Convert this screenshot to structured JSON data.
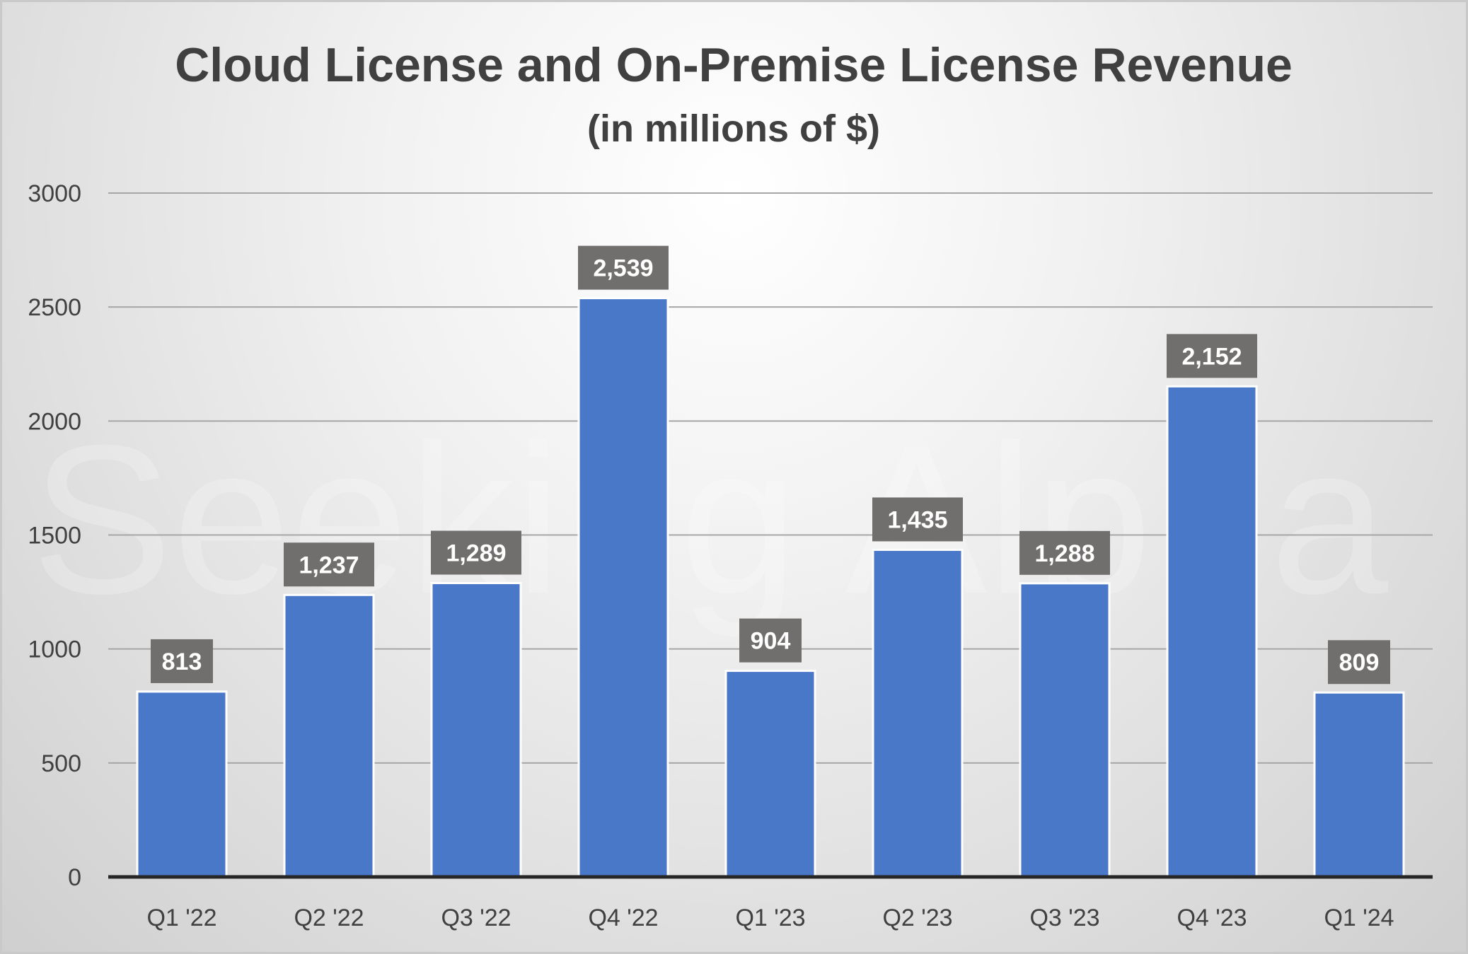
{
  "chart_data": {
    "type": "bar",
    "title": "Cloud License and On-Premise License Revenue",
    "subtitle": "(in millions of $)",
    "xlabel": "",
    "ylabel": "",
    "categories": [
      "Q1 '22",
      "Q2 '22",
      "Q3 '22",
      "Q4 '22",
      "Q1 '23",
      "Q2 '23",
      "Q3 '23",
      "Q4 '23",
      "Q1 '24"
    ],
    "values": [
      813,
      1237,
      1289,
      2539,
      904,
      1435,
      1288,
      2152,
      809
    ],
    "data_labels": [
      "813",
      "1,237",
      "1,289",
      "2,539",
      "904",
      "1,435",
      "1,288",
      "2,152",
      "809"
    ],
    "ylim": [
      0,
      3000
    ],
    "yticks": [
      0,
      500,
      1000,
      1500,
      2000,
      2500,
      3000
    ],
    "grid": true,
    "legend": "none",
    "watermark": "Seeking Alpha",
    "colors": {
      "bar": "#4a78c9",
      "bar_edge": "#ffffff",
      "label_box": "#716e6e",
      "grid": "#a6a6a6",
      "axis": "#262626"
    }
  }
}
